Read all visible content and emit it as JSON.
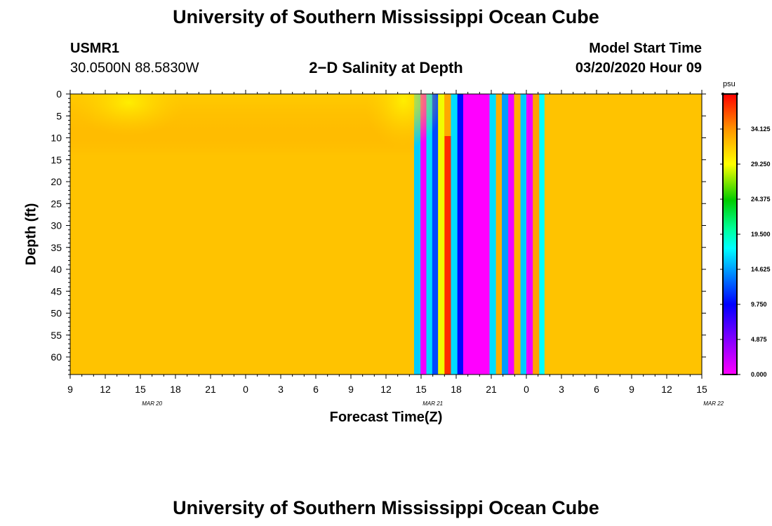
{
  "header": {
    "title": "University of Southern Mississippi Ocean Cube",
    "station": "USMR1",
    "location": "30.0500N 88.5830W",
    "chart_title": "2−D Salinity at Depth",
    "model_start_label": "Model Start Time",
    "model_start_value": "03/20/2020 Hour 09"
  },
  "footer": {
    "title": "University of Southern Mississippi Ocean Cube"
  },
  "chart_data": {
    "type": "heatmap",
    "title": "2−D Salinity at Depth",
    "xlabel": "Forecast Time(Z)",
    "ylabel": "Depth (ft)",
    "x_ticks": [
      "9",
      "12",
      "15",
      "18",
      "21",
      "0",
      "3",
      "6",
      "9",
      "12",
      "15",
      "18",
      "21",
      "0",
      "3",
      "6",
      "9",
      "12",
      "15"
    ],
    "x_date_labels": [
      {
        "label": "MAR  20",
        "at_hour": 16
      },
      {
        "label": "MAR  21",
        "at_hour": 40
      },
      {
        "label": "MAR  22",
        "at_hour": 64
      }
    ],
    "x_range_hours": [
      9,
      63
    ],
    "x_range_display": [
      "03/20 09Z",
      "03/22 15Z"
    ],
    "y_ticks": [
      0,
      5,
      10,
      15,
      20,
      25,
      30,
      35,
      40,
      45,
      50,
      55,
      60
    ],
    "y_range": [
      0,
      64
    ],
    "y_inverted": true,
    "colorbar": {
      "unit": "psu",
      "min": 0.0,
      "max": 39.0,
      "ticks": [
        "0.000",
        "4.875",
        "9.750",
        "14.625",
        "19.500",
        "24.375",
        "29.250",
        "34.125"
      ]
    },
    "bands": [
      {
        "from": 9,
        "to": 38.4,
        "salinity": 32.0,
        "note": "fresher surface layer 0–15 ft"
      },
      {
        "from": 38.4,
        "to": 38.95,
        "salinity": 16.0
      },
      {
        "from": 38.95,
        "to": 39.45,
        "salinity": 0.5
      },
      {
        "from": 39.45,
        "to": 39.95,
        "salinity": 16.5
      },
      {
        "from": 39.95,
        "to": 40.45,
        "salinity": 12.0
      },
      {
        "from": 40.45,
        "to": 41.0,
        "salinity": 29.0
      },
      {
        "from": 41.0,
        "to": 41.55,
        "salinity": 37.5
      },
      {
        "from": 41.55,
        "to": 42.1,
        "salinity": 16.5
      },
      {
        "from": 42.1,
        "to": 42.6,
        "salinity": 10.0
      },
      {
        "from": 42.6,
        "to": 44.85,
        "salinity": 0.0
      },
      {
        "from": 44.85,
        "to": 45.4,
        "salinity": 16.5
      },
      {
        "from": 45.4,
        "to": 45.9,
        "salinity": 33.0
      },
      {
        "from": 45.9,
        "to": 46.45,
        "salinity": 14.5
      },
      {
        "from": 46.45,
        "to": 46.95,
        "salinity": 0.5
      },
      {
        "from": 46.95,
        "to": 47.5,
        "salinity": 33.0
      },
      {
        "from": 47.5,
        "to": 48.0,
        "salinity": 16.0
      },
      {
        "from": 48.0,
        "to": 48.55,
        "salinity": 0.5
      },
      {
        "from": 48.55,
        "to": 49.1,
        "salinity": 33.5
      },
      {
        "from": 49.1,
        "to": 49.55,
        "salinity": 17.5
      },
      {
        "from": 49.55,
        "to": 63,
        "salinity": 32.0
      }
    ]
  }
}
